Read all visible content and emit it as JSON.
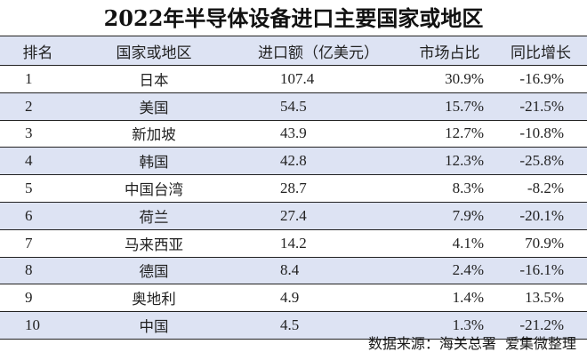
{
  "title": "2022年半导体设备进口主要国家或地区",
  "table": {
    "headers": [
      "排名",
      "国家或地区",
      "进口额（亿美元）",
      "市场占比",
      "同比增长"
    ],
    "rows": [
      {
        "rank": "1",
        "country": "日本",
        "import_value": "107.4",
        "share": "30.9%",
        "yoy": "-16.9%"
      },
      {
        "rank": "2",
        "country": "美国",
        "import_value": "54.5",
        "share": "15.7%",
        "yoy": "-21.5%"
      },
      {
        "rank": "3",
        "country": "新加坡",
        "import_value": "43.9",
        "share": "12.7%",
        "yoy": "-10.8%"
      },
      {
        "rank": "4",
        "country": "韩国",
        "import_value": "42.8",
        "share": "12.3%",
        "yoy": "-25.8%"
      },
      {
        "rank": "5",
        "country": "中国台湾",
        "import_value": "28.7",
        "share": "8.3%",
        "yoy": "-8.2%"
      },
      {
        "rank": "6",
        "country": "荷兰",
        "import_value": "27.4",
        "share": "7.9%",
        "yoy": "-20.1%"
      },
      {
        "rank": "7",
        "country": "马来西亚",
        "import_value": "14.2",
        "share": "4.1%",
        "yoy": "70.9%"
      },
      {
        "rank": "8",
        "country": "德国",
        "import_value": "8.4",
        "share": "2.4%",
        "yoy": "-16.1%"
      },
      {
        "rank": "9",
        "country": "奥地利",
        "import_value": "4.9",
        "share": "1.4%",
        "yoy": "13.5%"
      },
      {
        "rank": "10",
        "country": "中国",
        "import_value": "4.5",
        "share": "1.3%",
        "yoy": "-21.2%"
      }
    ]
  },
  "source": "数据来源：海关总署  爱集微整理",
  "colors": {
    "header_band": "#dde3f3",
    "rule": "#222222",
    "text": "#222222"
  }
}
